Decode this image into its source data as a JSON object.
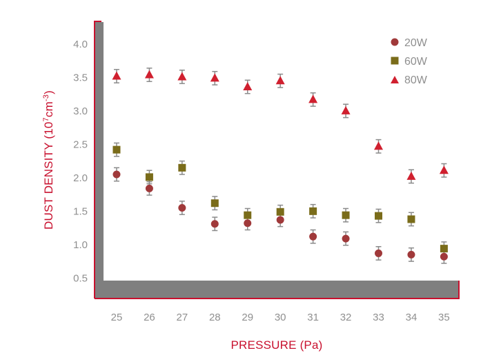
{
  "chart_data": {
    "type": "scatter",
    "title": "",
    "xlabel": "PRESSURE (Pa)",
    "ylabel_main": "DUST DENSITY (10",
    "ylabel_sup1": "7",
    "ylabel_mid": "cm",
    "ylabel_sup2": "-3",
    "ylabel_end": ")",
    "x": [
      25,
      26,
      27,
      28,
      29,
      30,
      31,
      32,
      33,
      34,
      35
    ],
    "xticks": [
      "25",
      "26",
      "27",
      "28",
      "29",
      "30",
      "31",
      "32",
      "33",
      "34",
      "35"
    ],
    "yticks": [
      "0.5",
      "1.0",
      "1.5",
      "2.0",
      "2.5",
      "3.0",
      "3.5",
      "4.0"
    ],
    "ytick_values": [
      0.5,
      1.0,
      1.5,
      2.0,
      2.5,
      3.0,
      3.5,
      4.0
    ],
    "xlim": [
      24.6,
      35.35
    ],
    "ylim": [
      0.4,
      4.35
    ],
    "grid": false,
    "legend_position": "top-right",
    "series": [
      {
        "name": "20W",
        "marker": "circle",
        "color": "#a0393a",
        "values": [
          2.05,
          1.84,
          1.55,
          1.31,
          1.32,
          1.37,
          1.12,
          1.09,
          0.87,
          0.85,
          0.82
        ],
        "errors": [
          0.1,
          0.1,
          0.1,
          0.1,
          0.1,
          0.1,
          0.1,
          0.1,
          0.1,
          0.1,
          0.1
        ]
      },
      {
        "name": "60W",
        "marker": "square",
        "color": "#7a6c1a",
        "values": [
          2.42,
          2.01,
          2.15,
          1.62,
          1.44,
          1.49,
          1.5,
          1.44,
          1.43,
          1.38,
          0.94
        ],
        "errors": [
          0.1,
          0.1,
          0.1,
          0.1,
          0.1,
          0.1,
          0.1,
          0.1,
          0.1,
          0.1,
          0.1
        ]
      },
      {
        "name": "80W",
        "marker": "triangle",
        "color": "#d0202f",
        "values": [
          3.52,
          3.54,
          3.51,
          3.49,
          3.36,
          3.45,
          3.17,
          3.0,
          2.47,
          2.02,
          2.11
        ],
        "errors": [
          0.1,
          0.1,
          0.1,
          0.1,
          0.1,
          0.1,
          0.1,
          0.1,
          0.1,
          0.1,
          0.1
        ]
      }
    ],
    "colors": {
      "frame": "#c8102e",
      "axis_band": "#7f7f7f",
      "tick_label": "#8f8f8f",
      "error_bar": "#8a8a8a"
    }
  }
}
